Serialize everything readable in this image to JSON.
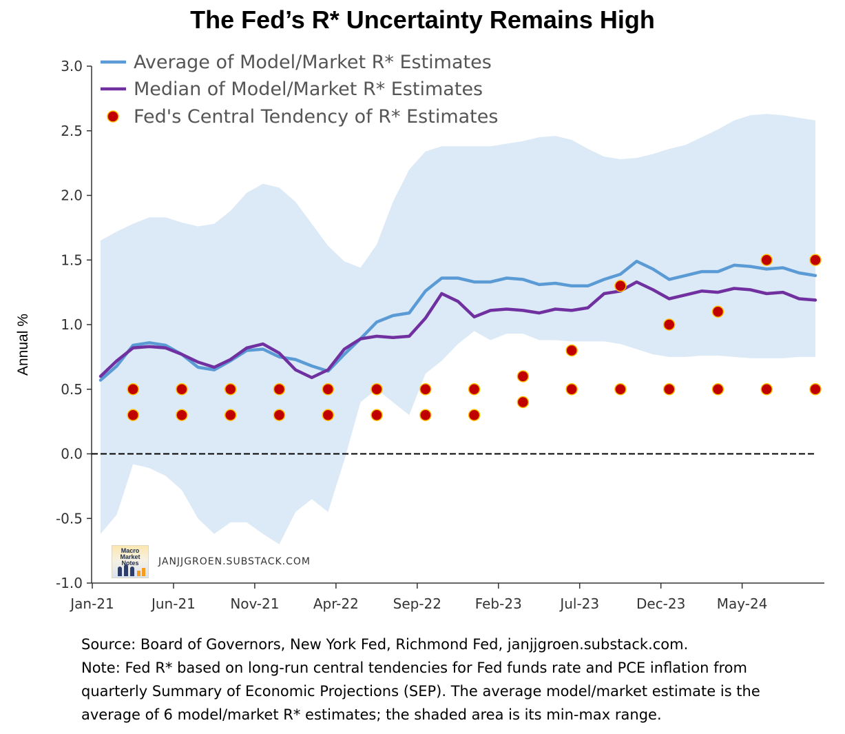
{
  "title": "The Fed’s R* Uncertainty Remains High",
  "watermark": {
    "text": "JANJJGROEN.SUBSTACK.COM",
    "logo_text_line1": "Macro Market",
    "logo_text_line2": "Notes"
  },
  "caption": {
    "line1": "Source: Board of Governors, New York Fed, Richmond Fed, janjjgroen.substack.com.",
    "line2": "Note: Fed R* based on long-run central tendencies for Fed funds rate and PCE inflation from",
    "line3": "quarterly Summary of Economic Projections (SEP). The average model/market estimate is the",
    "line4": "average of 6 model/market R* estimates; the shaded area is its  min-max range."
  },
  "colors": {
    "average": "#5b9bd5",
    "median": "#7030a0",
    "band": "#dce9f6",
    "dot_fill": "#c00000",
    "dot_edge": "#ffc000",
    "zero_line": "#000000"
  },
  "chart_data": {
    "type": "line",
    "title": "The Fed’s R* Uncertainty Remains High",
    "ylabel": "Annual %",
    "xlabel": "",
    "ylim": [
      -1.0,
      3.0
    ],
    "yticks": [
      -1.0,
      -0.5,
      0.0,
      0.5,
      1.0,
      1.5,
      2.0,
      2.5,
      3.0
    ],
    "ytick_labels": [
      "-1.0",
      "-0.5",
      "0.0",
      "0.5",
      "1.0",
      "1.5",
      "2.0",
      "2.5",
      "3.0"
    ],
    "xtick_labels": [
      "Jan-21",
      "Jun-21",
      "Nov-21",
      "Apr-22",
      "Sep-22",
      "Feb-23",
      "Jul-23",
      "Dec-23",
      "May-24"
    ],
    "xtick_months": [
      0,
      5,
      10,
      15,
      20,
      25,
      30,
      35,
      40
    ],
    "x_start": "2021-01",
    "x_months": [
      0,
      1,
      2,
      3,
      4,
      5,
      6,
      7,
      8,
      9,
      10,
      11,
      12,
      13,
      14,
      15,
      16,
      17,
      18,
      19,
      20,
      21,
      22,
      23,
      24,
      25,
      26,
      27,
      28,
      29,
      30,
      31,
      32,
      33,
      34,
      35,
      36,
      37,
      38,
      39,
      40,
      41,
      42,
      43,
      44
    ],
    "grid": false,
    "legend_position": "top-left",
    "zero_line": true,
    "series": [
      {
        "name": "Average of Model/Market R* Estimates",
        "kind": "line",
        "values": [
          0.57,
          0.68,
          0.84,
          0.86,
          0.84,
          0.77,
          0.67,
          0.65,
          0.72,
          0.8,
          0.81,
          0.75,
          0.73,
          0.68,
          0.64,
          0.77,
          0.89,
          1.02,
          1.07,
          1.09,
          1.26,
          1.36,
          1.36,
          1.33,
          1.33,
          1.36,
          1.35,
          1.31,
          1.32,
          1.3,
          1.3,
          1.35,
          1.39,
          1.49,
          1.43,
          1.35,
          1.38,
          1.41,
          1.41,
          1.46,
          1.45,
          1.43,
          1.44,
          1.4,
          1.38
        ]
      },
      {
        "name": "Median of Model/Market R* Estimates",
        "kind": "line",
        "values": [
          0.6,
          0.72,
          0.82,
          0.83,
          0.82,
          0.77,
          0.71,
          0.67,
          0.73,
          0.82,
          0.85,
          0.78,
          0.65,
          0.59,
          0.65,
          0.81,
          0.89,
          0.91,
          0.9,
          0.91,
          1.05,
          1.24,
          1.18,
          1.06,
          1.11,
          1.12,
          1.11,
          1.09,
          1.12,
          1.11,
          1.13,
          1.24,
          1.26,
          1.33,
          1.27,
          1.2,
          1.23,
          1.26,
          1.25,
          1.28,
          1.27,
          1.24,
          1.25,
          1.2,
          1.19
        ]
      }
    ],
    "range_band": {
      "name": "min-max range",
      "upper": [
        1.65,
        1.72,
        1.78,
        1.83,
        1.83,
        1.79,
        1.76,
        1.78,
        1.88,
        2.02,
        2.09,
        2.06,
        1.95,
        1.78,
        1.61,
        1.49,
        1.44,
        1.62,
        1.95,
        2.2,
        2.34,
        2.38,
        2.38,
        2.38,
        2.38,
        2.4,
        2.42,
        2.45,
        2.46,
        2.43,
        2.36,
        2.3,
        2.28,
        2.29,
        2.32,
        2.36,
        2.39,
        2.45,
        2.51,
        2.58,
        2.62,
        2.63,
        2.62,
        2.6,
        2.58
      ],
      "lower": [
        -0.62,
        -0.47,
        -0.08,
        -0.11,
        -0.17,
        -0.28,
        -0.5,
        -0.62,
        -0.53,
        -0.53,
        -0.62,
        -0.7,
        -0.45,
        -0.35,
        -0.45,
        -0.05,
        0.4,
        0.5,
        0.4,
        0.3,
        0.62,
        0.72,
        0.85,
        0.95,
        0.88,
        0.93,
        0.93,
        0.88,
        0.88,
        0.87,
        0.87,
        0.87,
        0.85,
        0.81,
        0.77,
        0.75,
        0.75,
        0.76,
        0.76,
        0.75,
        0.74,
        0.74,
        0.74,
        0.75,
        0.75
      ]
    },
    "fed_central_tendency": {
      "name": "Fed's Central Tendency of R* Estimates",
      "kind": "scatter",
      "points": [
        {
          "x": 2,
          "y": 0.5
        },
        {
          "x": 2,
          "y": 0.3
        },
        {
          "x": 5,
          "y": 0.5
        },
        {
          "x": 5,
          "y": 0.3
        },
        {
          "x": 8,
          "y": 0.5
        },
        {
          "x": 8,
          "y": 0.3
        },
        {
          "x": 11,
          "y": 0.5
        },
        {
          "x": 11,
          "y": 0.3
        },
        {
          "x": 14,
          "y": 0.5
        },
        {
          "x": 14,
          "y": 0.3
        },
        {
          "x": 17,
          "y": 0.5
        },
        {
          "x": 17,
          "y": 0.3
        },
        {
          "x": 20,
          "y": 0.5
        },
        {
          "x": 20,
          "y": 0.3
        },
        {
          "x": 23,
          "y": 0.5
        },
        {
          "x": 23,
          "y": 0.3
        },
        {
          "x": 26,
          "y": 0.6
        },
        {
          "x": 26,
          "y": 0.4
        },
        {
          "x": 29,
          "y": 0.8
        },
        {
          "x": 29,
          "y": 0.5
        },
        {
          "x": 32,
          "y": 1.3
        },
        {
          "x": 32,
          "y": 0.5
        },
        {
          "x": 35,
          "y": 1.0
        },
        {
          "x": 35,
          "y": 0.5
        },
        {
          "x": 38,
          "y": 1.1
        },
        {
          "x": 38,
          "y": 0.5
        },
        {
          "x": 41,
          "y": 1.5
        },
        {
          "x": 41,
          "y": 0.5
        },
        {
          "x": 44,
          "y": 1.5
        },
        {
          "x": 44,
          "y": 0.5
        }
      ]
    },
    "legend": [
      "Average of Model/Market R* Estimates",
      "Median of Model/Market R* Estimates",
      "Fed's Central Tendency of R* Estimates"
    ]
  }
}
